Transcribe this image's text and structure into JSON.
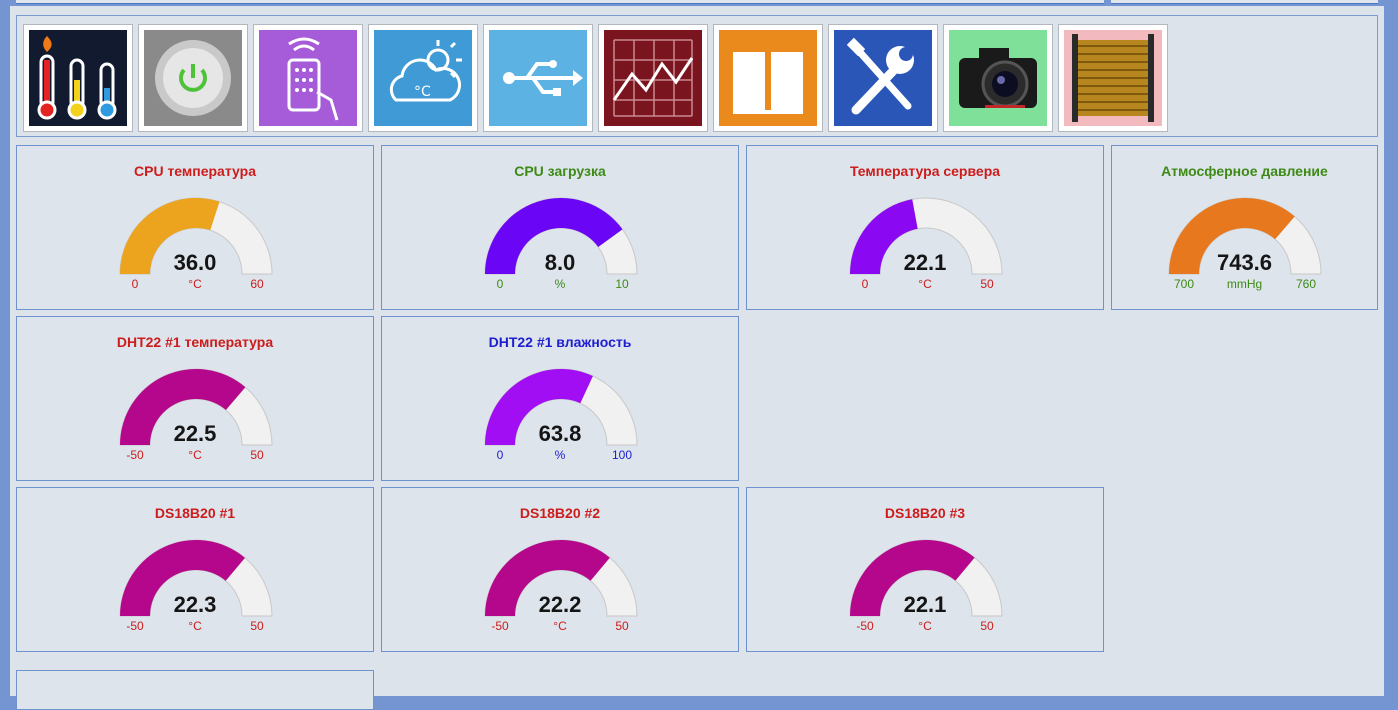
{
  "colors": {
    "red_title": "#cc1c1c",
    "green_title": "#3d8a16",
    "blue_title": "#1e1ed0",
    "track": "#f1f1f1"
  },
  "toolbar": {
    "tiles": [
      {
        "name": "thermometers-icon"
      },
      {
        "name": "power-icon"
      },
      {
        "name": "remote-control-icon"
      },
      {
        "name": "weather-icon"
      },
      {
        "name": "usb-icon"
      },
      {
        "name": "chart-icon"
      },
      {
        "name": "book-icon"
      },
      {
        "name": "tools-icon"
      },
      {
        "name": "camera-icon"
      },
      {
        "name": "coil-icon"
      }
    ]
  },
  "gauges": [
    {
      "title": "CPU температура",
      "value": "36.0",
      "unit": "°C",
      "min": "0",
      "max": "60",
      "fraction": 0.6,
      "color": "#eca31d",
      "title_color": "#cc1c1c",
      "label_color": "#cc1c1c"
    },
    {
      "title": "CPU загрузка",
      "value": "8.0",
      "unit": "%",
      "min": "0",
      "max": "10",
      "fraction": 0.8,
      "color": "#6a05f5",
      "title_color": "#3d8a16",
      "label_color": "#3d8a16"
    },
    {
      "title": "Температура сервера",
      "value": "22.1",
      "unit": "°C",
      "min": "0",
      "max": "50",
      "fraction": 0.442,
      "color": "#8a08f2",
      "title_color": "#cc1c1c",
      "label_color": "#cc1c1c"
    },
    {
      "title": "Атмосферное давление",
      "value": "743.6",
      "unit": "mmHg",
      "min": "700",
      "max": "760",
      "fraction": 0.727,
      "color": "#e8781e",
      "title_color": "#3d8a16",
      "label_color": "#3d8a16"
    },
    {
      "title": "DHT22 #1 температура",
      "value": "22.5",
      "unit": "°C",
      "min": "-50",
      "max": "50",
      "fraction": 0.725,
      "color": "#b5078b",
      "title_color": "#cc1c1c",
      "label_color": "#cc1c1c"
    },
    {
      "title": "DHT22 #1 влажность",
      "value": "63.8",
      "unit": "%",
      "min": "0",
      "max": "100",
      "fraction": 0.638,
      "color": "#a10ef3",
      "title_color": "#1e1ed0",
      "label_color": "#1e1ed0"
    },
    {
      "title": "DS18B20 #1",
      "value": "22.3",
      "unit": "°C",
      "min": "-50",
      "max": "50",
      "fraction": 0.723,
      "color": "#b5078b",
      "title_color": "#cc1c1c",
      "label_color": "#cc1c1c"
    },
    {
      "title": "DS18B20 #2",
      "value": "22.2",
      "unit": "°C",
      "min": "-50",
      "max": "50",
      "fraction": 0.722,
      "color": "#b5078b",
      "title_color": "#cc1c1c",
      "label_color": "#cc1c1c"
    },
    {
      "title": "DS18B20 #3",
      "value": "22.1",
      "unit": "°C",
      "min": "-50",
      "max": "50",
      "fraction": 0.721,
      "color": "#b5078b",
      "title_color": "#cc1c1c",
      "label_color": "#cc1c1c"
    }
  ]
}
